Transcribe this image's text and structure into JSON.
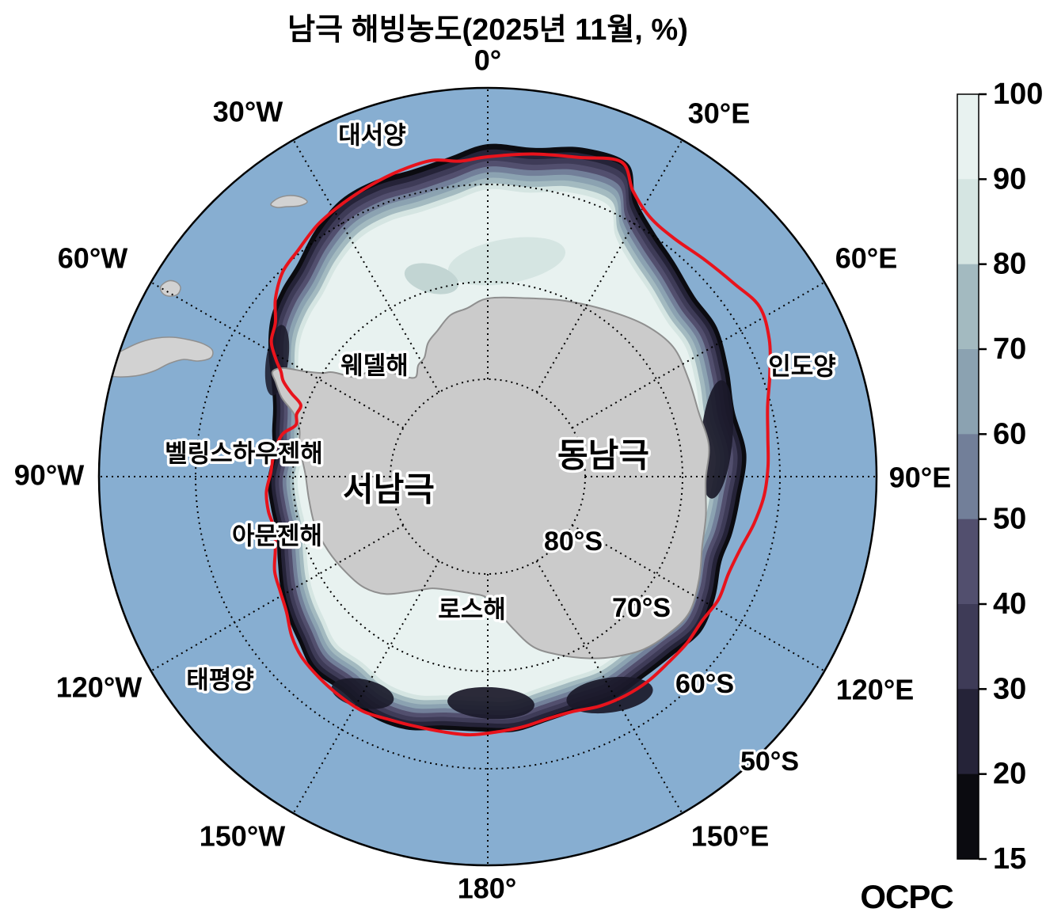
{
  "title": "남극 해빙농도(2025년 11월, %)",
  "map": {
    "meridian_labels": [
      "0°",
      "30°E",
      "60°E",
      "90°E",
      "120°E",
      "150°E",
      "180°",
      "150°W",
      "120°W",
      "90°W",
      "60°W",
      "30°W"
    ],
    "parallel_labels": [
      "80°S",
      "70°S",
      "60°S",
      "50°S"
    ],
    "place_labels": {
      "atlantic": "대서양",
      "indian": "인도양",
      "pacific": "태평양",
      "weddell": "웨델해",
      "bellingshausen": "벨링스하우젠해",
      "amundsen": "아문젠해",
      "ross": "로스해",
      "west_antarctica": "서남극",
      "east_antarctica": "동남극"
    }
  },
  "colorbar": {
    "tick_labels": [
      "100",
      "90",
      "80",
      "70",
      "60",
      "50",
      "40",
      "30",
      "20",
      "15"
    ],
    "segment_colors_top_to_bottom": [
      "#e8f2f0",
      "#d5e5e2",
      "#a3bac0",
      "#8ba2b1",
      "#727f99",
      "#524f6e",
      "#3e3b57",
      "#252338",
      "#0b0b10"
    ]
  },
  "colors": {
    "ocean": "#87aed1",
    "land": "#cbcbcb",
    "coastline": "#8f8f8f",
    "pack_ice": "#e8f2f0",
    "red_line": "#e8131c"
  },
  "logo": {
    "text": "OCPC"
  }
}
